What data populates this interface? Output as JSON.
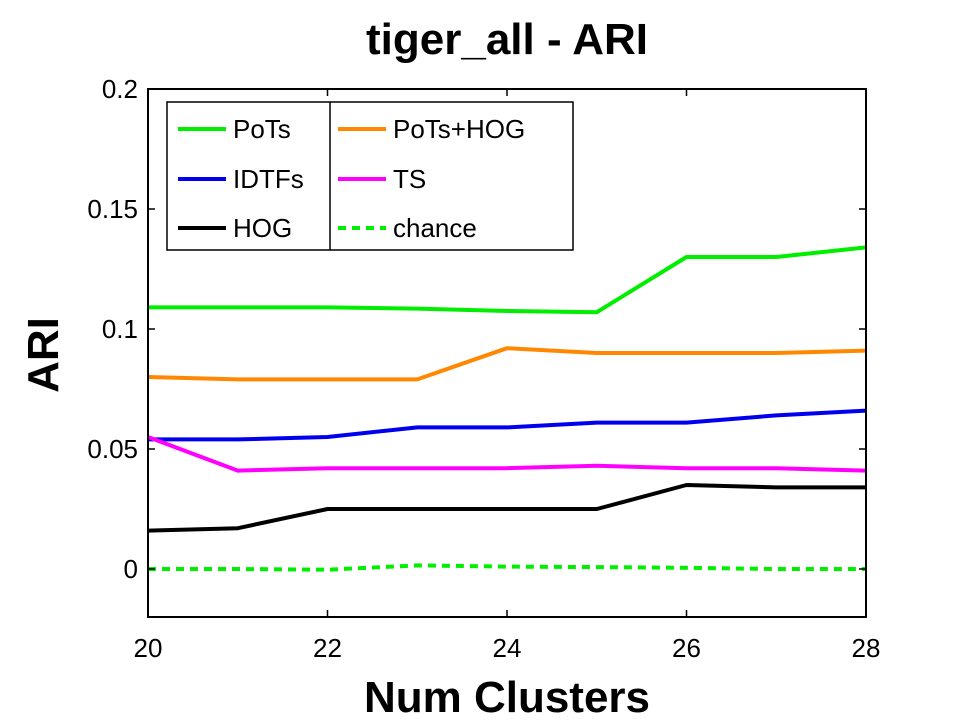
{
  "chart_data": {
    "type": "line",
    "title": "tiger_all - ARI",
    "xlabel": "Num Clusters",
    "ylabel": "ARI",
    "xlim": [
      20,
      28
    ],
    "ylim": [
      -0.02,
      0.2
    ],
    "xticks": [
      "20",
      "22",
      "24",
      "26",
      "28"
    ],
    "yticks": [
      "0",
      "0.05",
      "0.1",
      "0.15",
      "0.2"
    ],
    "x": [
      20,
      21,
      22,
      23,
      24,
      25,
      26,
      27,
      28
    ],
    "series": [
      {
        "name": "PoTs",
        "color": "#00ee00",
        "dash": "solid",
        "values": [
          0.109,
          0.109,
          0.109,
          0.1085,
          0.1075,
          0.107,
          0.13,
          0.13,
          0.134
        ]
      },
      {
        "name": "IDTFs",
        "color": "#0000ee",
        "dash": "solid",
        "values": [
          0.054,
          0.054,
          0.055,
          0.059,
          0.059,
          0.061,
          0.061,
          0.064,
          0.066
        ]
      },
      {
        "name": "HOG",
        "color": "#000000",
        "dash": "solid",
        "values": [
          0.016,
          0.017,
          0.025,
          0.025,
          0.025,
          0.025,
          0.035,
          0.034,
          0.034
        ]
      },
      {
        "name": "PoTs+HOG",
        "color": "#ff8800",
        "dash": "solid",
        "values": [
          0.08,
          0.079,
          0.079,
          0.079,
          0.092,
          0.09,
          0.09,
          0.09,
          0.091
        ]
      },
      {
        "name": "TS",
        "color": "#ff00ff",
        "dash": "solid",
        "values": [
          0.055,
          0.041,
          0.042,
          0.042,
          0.042,
          0.043,
          0.042,
          0.042,
          0.041
        ]
      },
      {
        "name": "chance",
        "color": "#00ee00",
        "dash": "dashed",
        "values": [
          0.0,
          0.0,
          -0.0003,
          0.0015,
          0.001,
          0.0008,
          0.0005,
          0.0,
          0.0
        ]
      }
    ],
    "legend": {
      "position": "top-left",
      "columns": [
        [
          "PoTs",
          "IDTFs",
          "HOG"
        ],
        [
          "PoTs+HOG",
          "TS",
          "chance"
        ]
      ]
    },
    "grid": false
  }
}
